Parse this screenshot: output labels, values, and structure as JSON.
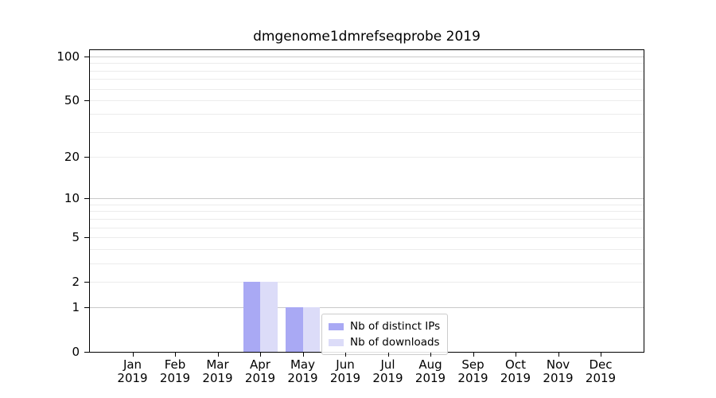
{
  "chart_data": {
    "type": "bar",
    "title": "dmgenome1dmrefseqprobe 2019",
    "categories": [
      "Jan",
      "Feb",
      "Mar",
      "Apr",
      "May",
      "Jun",
      "Jul",
      "Aug",
      "Sep",
      "Oct",
      "Nov",
      "Dec"
    ],
    "category_year": "2019",
    "series": [
      {
        "name": "Nb of distinct IPs",
        "color": "#a9a9f4",
        "values": [
          0,
          0,
          0,
          2,
          1,
          0,
          0,
          0,
          0,
          0,
          0,
          0
        ]
      },
      {
        "name": "Nb of downloads",
        "color": "#dcdcf8",
        "values": [
          0,
          0,
          0,
          2,
          1,
          0,
          0,
          0,
          0,
          0,
          0,
          0
        ]
      }
    ],
    "yscale": "log10(1+x)",
    "ylim": [
      0,
      113
    ],
    "y_ticks": [
      0,
      1,
      2,
      5,
      10,
      20,
      50,
      100
    ],
    "y_gridlines_major": [
      1,
      10,
      100
    ],
    "y_gridlines_minor": [
      2,
      3,
      4,
      5,
      6,
      7,
      8,
      9,
      20,
      30,
      40,
      50,
      60,
      70,
      80,
      90
    ],
    "grid_color_major": "#c9c9c9",
    "grid_color_minor": "#ececec",
    "legend_position": "lower-center",
    "xlabel": "",
    "ylabel": ""
  }
}
